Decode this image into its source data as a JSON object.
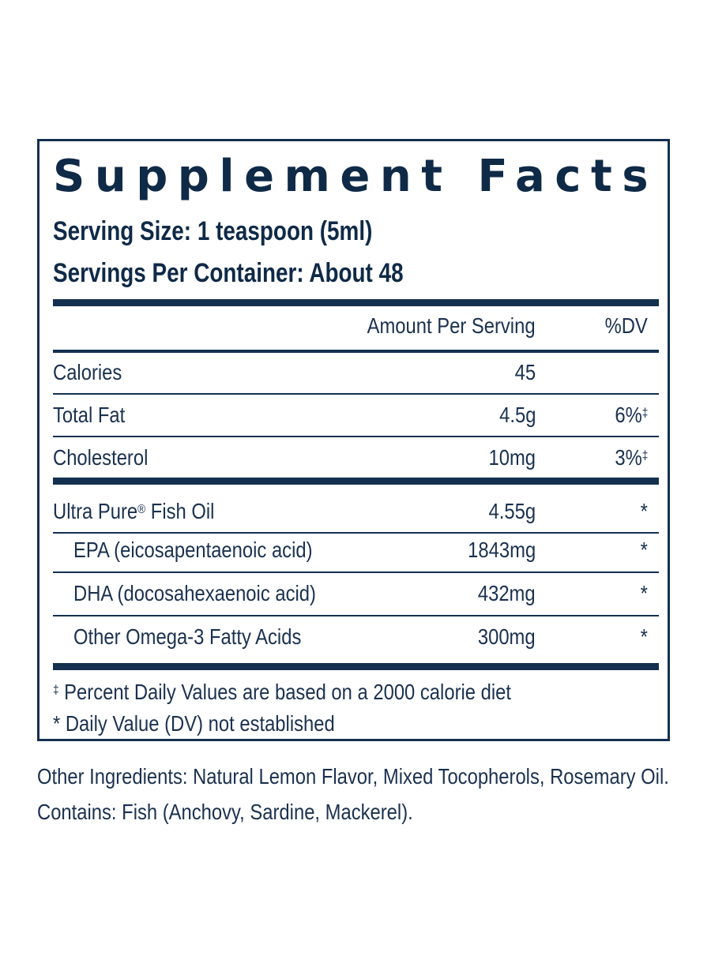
{
  "panel": {
    "title": "Supplement Facts",
    "serving_size": "Serving Size: 1 teaspoon (5ml)",
    "servings_per_container": "Servings Per Container: About 48",
    "header": {
      "amount": "Amount Per Serving",
      "dv": "%DV"
    },
    "rows": [
      {
        "label": "Calories",
        "amount": "45",
        "dv": ""
      },
      {
        "label": "Total Fat",
        "amount": "4.5g",
        "dv": "6%",
        "dv_mark": "‡"
      },
      {
        "label": "Cholesterol",
        "amount": "10mg",
        "dv": "3%",
        "dv_mark": "‡"
      },
      {
        "label": "Ultra Pure",
        "label_mark": "®",
        "label_suffix": " Fish Oil",
        "amount": "4.55g",
        "dv": "*"
      },
      {
        "label": "EPA (eicosapentaenoic acid)",
        "amount": "1843mg",
        "dv": "*"
      },
      {
        "label": "DHA (docosahexaenoic acid)",
        "amount": "432mg",
        "dv": "*"
      },
      {
        "label": "Other Omega-3 Fatty Acids",
        "amount": "300mg",
        "dv": "*"
      }
    ],
    "footnotes": {
      "dagger_mark": "‡",
      "dagger_text": " Percent Daily Values are based on a 2000 calorie diet",
      "asterisk": "* Daily Value (DV) not established"
    }
  },
  "other_ingredients": "Other Ingredients: Natural Lemon Flavor, Mixed Tocopherols, Rosemary Oil.",
  "contains": "Contains: Fish (Anchovy, Sardine, Mackerel).",
  "colors": {
    "ink": "#0f2a47",
    "rule": "#14304f",
    "background": "#ffffff"
  }
}
